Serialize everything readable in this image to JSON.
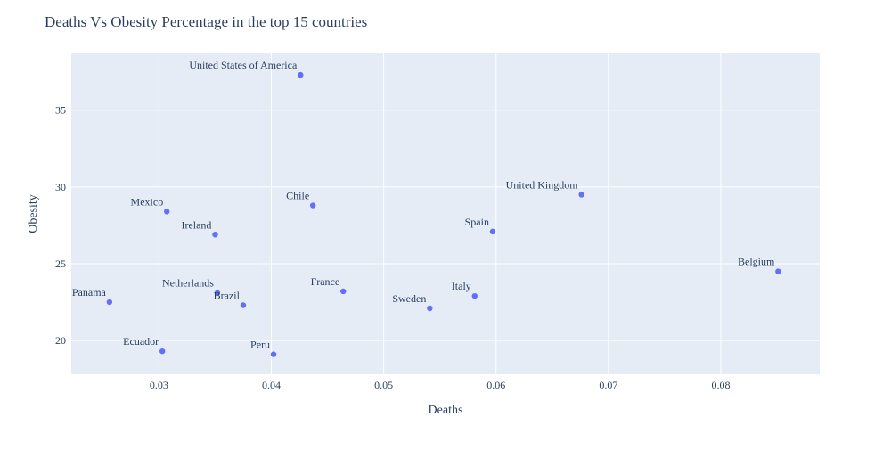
{
  "chart_data": {
    "type": "scatter",
    "title": "Deaths Vs Obesity Percentage in the top 15 countries",
    "xlabel": "Deaths",
    "ylabel": "Obesity",
    "xlim": [
      0.0222,
      0.0888
    ],
    "ylim": [
      17.8,
      38.7
    ],
    "xticks": [
      0.03,
      0.04,
      0.05,
      0.06,
      0.07,
      0.08
    ],
    "yticks": [
      20,
      25,
      30,
      35
    ],
    "grid": true,
    "colors": {
      "marker": "#636efa",
      "plot_bg": "#e5ecf6",
      "grid": "#ffffff",
      "text": "#2a3f5f"
    },
    "points": [
      {
        "name": "United States of America",
        "x": 0.0426,
        "y": 37.3
      },
      {
        "name": "United Kingdom",
        "x": 0.0676,
        "y": 29.5
      },
      {
        "name": "Chile",
        "x": 0.0437,
        "y": 28.8
      },
      {
        "name": "Mexico",
        "x": 0.0307,
        "y": 28.4
      },
      {
        "name": "Spain",
        "x": 0.0597,
        "y": 27.1
      },
      {
        "name": "Ireland",
        "x": 0.035,
        "y": 26.9
      },
      {
        "name": "Belgium",
        "x": 0.0851,
        "y": 24.5
      },
      {
        "name": "France",
        "x": 0.0464,
        "y": 23.2
      },
      {
        "name": "Netherlands",
        "x": 0.0352,
        "y": 23.1
      },
      {
        "name": "Italy",
        "x": 0.0581,
        "y": 22.9
      },
      {
        "name": "Panama",
        "x": 0.0256,
        "y": 22.5
      },
      {
        "name": "Brazil",
        "x": 0.0375,
        "y": 22.3
      },
      {
        "name": "Sweden",
        "x": 0.0541,
        "y": 22.1
      },
      {
        "name": "Ecuador",
        "x": 0.0303,
        "y": 19.3
      },
      {
        "name": "Peru",
        "x": 0.0402,
        "y": 19.1
      }
    ]
  }
}
